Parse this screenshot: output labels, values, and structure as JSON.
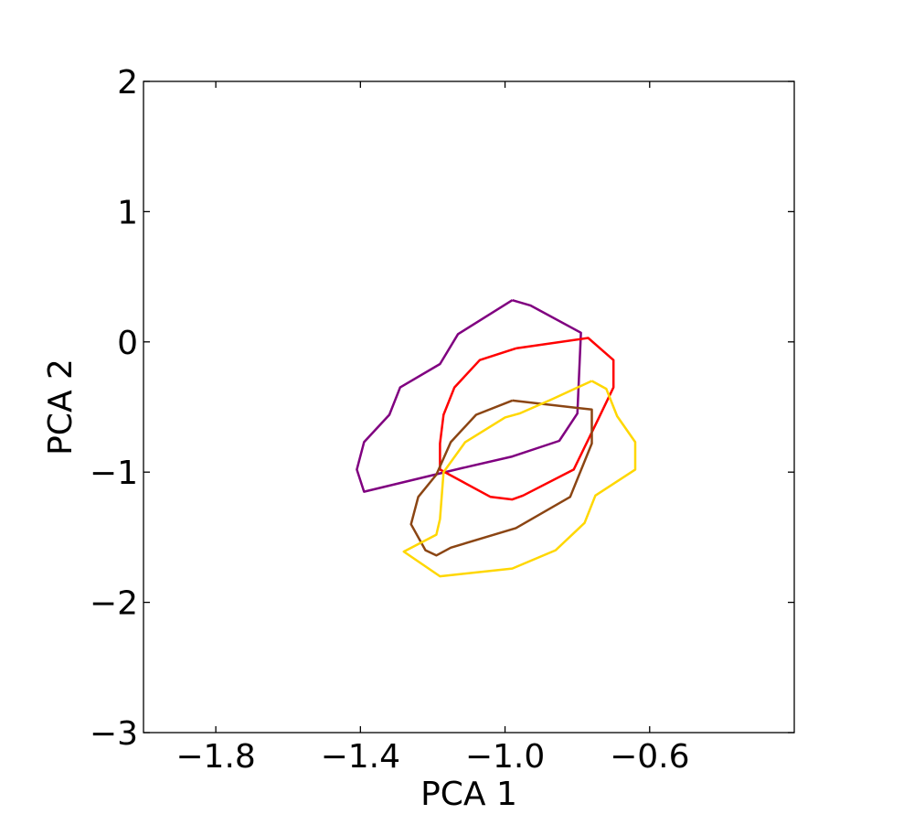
{
  "chart_data": {
    "type": "line",
    "title": "",
    "xlabel": "PCA 1",
    "ylabel": "PCA 2",
    "xlim": [
      -2.0,
      -0.2
    ],
    "ylim": [
      -3,
      2
    ],
    "xticks": [
      -1.8,
      -1.4,
      -1.0,
      -0.6
    ],
    "xtick_labels": [
      "−1.8",
      "−1.4",
      "−1.0",
      "−0.6"
    ],
    "yticks": [
      -3,
      -2,
      -1,
      0,
      1,
      2
    ],
    "ytick_labels": [
      "−3",
      "−2",
      "−1",
      "0",
      "1",
      "2"
    ],
    "grid": false,
    "legend": "none",
    "series": [
      {
        "color": "#800080",
        "closed": true,
        "points": [
          [
            -0.98,
            0.32
          ],
          [
            -0.93,
            0.28
          ],
          [
            -0.79,
            0.07
          ],
          [
            -0.8,
            -0.55
          ],
          [
            -0.85,
            -0.76
          ],
          [
            -0.98,
            -0.88
          ],
          [
            -1.12,
            -0.97
          ],
          [
            -1.39,
            -1.15
          ],
          [
            -1.41,
            -0.98
          ],
          [
            -1.39,
            -0.77
          ],
          [
            -1.32,
            -0.56
          ],
          [
            -1.29,
            -0.35
          ],
          [
            -1.18,
            -0.17
          ],
          [
            -1.13,
            0.06
          ]
        ]
      },
      {
        "color": "#ff0000",
        "closed": true,
        "points": [
          [
            -0.97,
            -0.05
          ],
          [
            -0.77,
            0.03
          ],
          [
            -0.7,
            -0.14
          ],
          [
            -0.7,
            -0.35
          ],
          [
            -0.74,
            -0.58
          ],
          [
            -0.81,
            -0.98
          ],
          [
            -0.95,
            -1.18
          ],
          [
            -0.98,
            -1.21
          ],
          [
            -1.04,
            -1.19
          ],
          [
            -1.18,
            -0.98
          ],
          [
            -1.18,
            -0.78
          ],
          [
            -1.17,
            -0.56
          ],
          [
            -1.14,
            -0.35
          ],
          [
            -1.07,
            -0.14
          ]
        ]
      },
      {
        "color": "#8b4513",
        "closed": true,
        "points": [
          [
            -0.98,
            -0.45
          ],
          [
            -0.76,
            -0.52
          ],
          [
            -0.76,
            -0.78
          ],
          [
            -0.82,
            -1.19
          ],
          [
            -0.97,
            -1.43
          ],
          [
            -1.15,
            -1.58
          ],
          [
            -1.19,
            -1.64
          ],
          [
            -1.22,
            -1.6
          ],
          [
            -1.26,
            -1.4
          ],
          [
            -1.24,
            -1.19
          ],
          [
            -1.19,
            -1.02
          ],
          [
            -1.15,
            -0.77
          ],
          [
            -1.08,
            -0.56
          ]
        ]
      },
      {
        "color": "#ffd700",
        "closed": true,
        "points": [
          [
            -0.76,
            -0.3
          ],
          [
            -0.72,
            -0.36
          ],
          [
            -0.69,
            -0.57
          ],
          [
            -0.64,
            -0.77
          ],
          [
            -0.64,
            -0.98
          ],
          [
            -0.75,
            -1.18
          ],
          [
            -0.78,
            -1.39
          ],
          [
            -0.86,
            -1.6
          ],
          [
            -0.98,
            -1.74
          ],
          [
            -1.18,
            -1.8
          ],
          [
            -1.28,
            -1.61
          ],
          [
            -1.19,
            -1.48
          ],
          [
            -1.18,
            -1.36
          ],
          [
            -1.17,
            -1.0
          ],
          [
            -1.11,
            -0.77
          ],
          [
            -1.0,
            -0.58
          ],
          [
            -0.96,
            -0.55
          ],
          [
            -0.87,
            -0.44
          ]
        ]
      }
    ]
  }
}
